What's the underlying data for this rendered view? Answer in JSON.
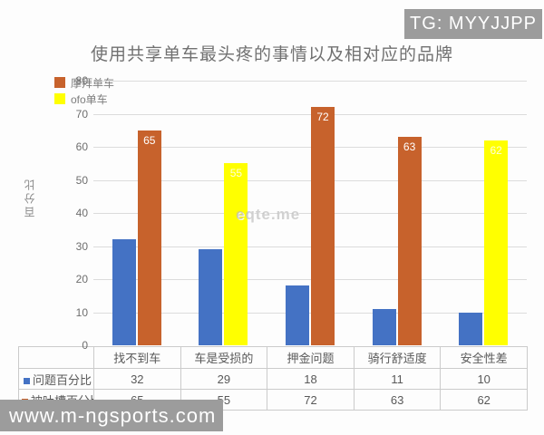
{
  "badge": {
    "text": "TG: MYYJJPP"
  },
  "title": "使用共享单车最头疼的事情以及相对应的品牌",
  "ylabel": "百分比",
  "watermark_center": "eqte.me",
  "watermark_bottom": "www.m-ngsports.com",
  "colors": {
    "blue": "#4472C4",
    "orange": "#C7622C",
    "yellow": "#FFFF00",
    "grid": "#dcdcdc",
    "gray_badge": "#9c9c9c"
  },
  "legend": [
    {
      "label": "摩拜单车",
      "color": "#C7622C"
    },
    {
      "label": "ofo单车",
      "color": "#FFFF00"
    }
  ],
  "chart_data": {
    "type": "bar",
    "title": "使用共享单车最头疼的事情以及相对应的品牌",
    "xlabel": "",
    "ylabel": "百分比",
    "ylim": [
      0,
      80
    ],
    "ytick_step": 10,
    "grid": true,
    "legend_position": "top-left",
    "categories": [
      "找不到车",
      "车是受损的",
      "押金问题",
      "骑行舒适度",
      "安全性差"
    ],
    "series": [
      {
        "name": "问题百分比",
        "color": "#4472C4",
        "values": [
          32,
          29,
          18,
          11,
          10
        ],
        "data_labels": false
      },
      {
        "name": "被吐槽百分比",
        "values": [
          65,
          55,
          72,
          63,
          62
        ],
        "data_labels": true,
        "bar_colors": [
          "#C7622C",
          "#FFFF00",
          "#C7622C",
          "#C7622C",
          "#FFFF00"
        ],
        "brand_per_category": [
          "摩拜单车",
          "ofo单车",
          "摩拜单车",
          "摩拜单车",
          "ofo单车"
        ]
      }
    ]
  },
  "table": {
    "columns": [
      "找不到车",
      "车是受损的",
      "押金问题",
      "骑行舒适度",
      "安全性差"
    ],
    "rows": [
      {
        "label": "问题百分比",
        "marker_color": "#4472C4",
        "values": [
          "32",
          "29",
          "18",
          "11",
          "10"
        ]
      },
      {
        "label": "被吐槽百分比",
        "marker_color": "#C7622C",
        "values": [
          "65",
          "55",
          "72",
          "63",
          "62"
        ]
      }
    ]
  }
}
